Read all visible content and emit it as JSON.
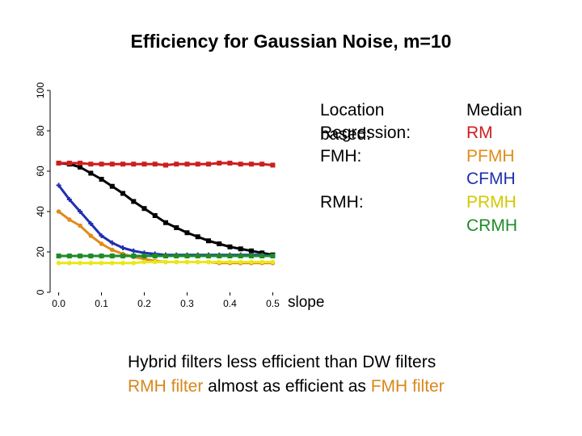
{
  "chart_data": {
    "type": "line",
    "title": "Efficiency for Gaussian Noise, m=10",
    "xlabel": "slope",
    "ylabel": "",
    "x": [
      0.0,
      0.025,
      0.05,
      0.075,
      0.1,
      0.125,
      0.15,
      0.175,
      0.2,
      0.225,
      0.25,
      0.275,
      0.3,
      0.325,
      0.35,
      0.375,
      0.4,
      0.425,
      0.45,
      0.475,
      0.5
    ],
    "xticks": [
      "0.0",
      "0.1",
      "0.2",
      "0.3",
      "0.4",
      "0.5"
    ],
    "yticks": [
      "0",
      "20",
      "40",
      "60",
      "80",
      "100"
    ],
    "xlim": [
      -0.02,
      0.52
    ],
    "ylim": [
      0,
      100
    ],
    "series": [
      {
        "name": "Median",
        "color": "#000000",
        "marker": "square",
        "values": [
          64,
          63.5,
          62,
          59,
          56,
          52.5,
          49,
          45,
          41.5,
          38,
          34.5,
          32,
          29.5,
          27.5,
          25.5,
          24,
          22.5,
          21.5,
          20.5,
          19.5,
          18.5
        ]
      },
      {
        "name": "RM",
        "color": "#cc1f1f",
        "marker": "square",
        "values": [
          64,
          64,
          64,
          63.5,
          63.5,
          63.5,
          63.5,
          63.5,
          63.5,
          63.5,
          63,
          63.5,
          63.5,
          63.5,
          63.5,
          64,
          64,
          63.5,
          63.5,
          63.5,
          63
        ]
      },
      {
        "name": "PFMH",
        "color": "#e08c1a",
        "marker": "circle",
        "values": [
          40,
          36,
          33,
          28,
          24,
          21,
          19,
          17.5,
          16.5,
          15.5,
          15,
          15,
          15,
          15,
          15,
          14.5,
          14.5,
          14.5,
          14.5,
          14.5,
          14.5
        ]
      },
      {
        "name": "CFMH",
        "color": "#1f2fb0",
        "marker": "plus",
        "values": [
          53,
          46,
          40,
          34,
          28,
          24.5,
          22,
          20.5,
          19.5,
          19,
          18.5,
          18.5,
          18.5,
          18.5,
          18.5,
          18.5,
          18.5,
          18.5,
          18.5,
          18.5,
          18
        ]
      },
      {
        "name": "PRMH",
        "color": "#e8e81a",
        "marker": "circle",
        "values": [
          14.5,
          14.5,
          14.5,
          14.5,
          14.5,
          14.5,
          14.5,
          14.5,
          15,
          15,
          15,
          15,
          15,
          15,
          15,
          15,
          15,
          15,
          15,
          15,
          15
        ]
      },
      {
        "name": "CRMH",
        "color": "#1f8c2a",
        "marker": "square",
        "values": [
          18,
          18,
          18,
          18,
          18,
          18,
          18,
          18,
          18,
          18,
          18,
          18,
          18,
          18,
          18,
          18,
          18,
          18,
          18,
          18,
          18
        ]
      }
    ]
  },
  "legend": {
    "location_label": "Location based:",
    "regression_label": "Regression:",
    "fmh_label": "FMH:",
    "rmh_label": "RMH:",
    "median": "Median",
    "rm": "RM",
    "pfmh": "PFMH",
    "cfmh": "CFMH",
    "prmh": "PRMH",
    "crmh": "CRMH"
  },
  "notes": {
    "line1": "Hybrid filters less efficient than DW filters",
    "line2_part1": "RMH filter",
    "line2_part2": " almost as efficient as ",
    "line2_part3": "FMH filter"
  },
  "colors": {
    "median": "#000000",
    "rm": "#cc1f1f",
    "pfmh": "#e08c1a",
    "cfmh": "#1f2fb0",
    "prmh": "#d4c800",
    "crmh": "#1f8c2a",
    "note_black": "#000000",
    "note_orange": "#d9861a"
  }
}
